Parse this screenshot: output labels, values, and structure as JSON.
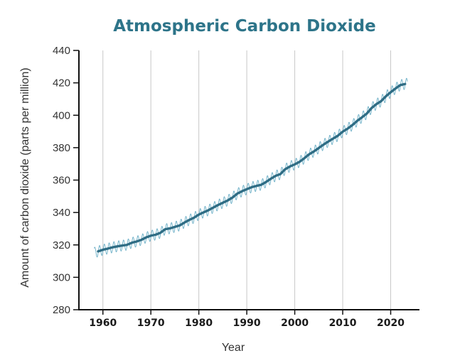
{
  "chart_data": {
    "type": "line",
    "title": "Atmospheric Carbon Dioxide",
    "xlabel": "Year",
    "ylabel": "Amount of carbon dioxide (parts per million)",
    "xlim": [
      1955,
      2026
    ],
    "ylim": [
      280,
      440
    ],
    "x_ticks": [
      1960,
      1970,
      1980,
      1990,
      2000,
      2010,
      2020
    ],
    "y_ticks": [
      280,
      300,
      320,
      340,
      360,
      380,
      400,
      420,
      440
    ],
    "x_tick_labels": [
      "1960",
      "1970",
      "1980",
      "1990",
      "2000",
      "2010",
      "2020"
    ],
    "y_tick_labels": [
      "280",
      "300",
      "320",
      "340",
      "360",
      "380",
      "400",
      "420",
      "440"
    ],
    "grid": "vertical",
    "series": [
      {
        "role": "annual-average",
        "x": [
          1959,
          1960,
          1961,
          1962,
          1963,
          1964,
          1965,
          1966,
          1967,
          1968,
          1969,
          1970,
          1971,
          1972,
          1973,
          1974,
          1975,
          1976,
          1977,
          1978,
          1979,
          1980,
          1981,
          1982,
          1983,
          1984,
          1985,
          1986,
          1987,
          1988,
          1989,
          1990,
          1991,
          1992,
          1993,
          1994,
          1995,
          1996,
          1997,
          1998,
          1999,
          2000,
          2001,
          2002,
          2003,
          2004,
          2005,
          2006,
          2007,
          2008,
          2009,
          2010,
          2011,
          2012,
          2013,
          2014,
          2015,
          2016,
          2017,
          2018,
          2019,
          2020,
          2021,
          2022,
          2023
        ],
        "values": [
          316.0,
          317.0,
          317.7,
          318.5,
          319.1,
          319.6,
          320.0,
          321.3,
          322.1,
          323.1,
          324.6,
          325.7,
          326.3,
          327.5,
          329.7,
          330.2,
          331.1,
          332.0,
          333.8,
          335.4,
          336.8,
          338.7,
          340.1,
          341.4,
          343.0,
          344.6,
          346.0,
          347.4,
          349.2,
          351.6,
          353.1,
          354.4,
          355.6,
          356.4,
          357.1,
          358.8,
          360.8,
          362.6,
          363.7,
          366.7,
          368.4,
          369.7,
          371.3,
          373.5,
          375.9,
          377.7,
          379.8,
          381.9,
          383.8,
          385.6,
          387.4,
          389.9,
          391.7,
          393.9,
          396.5,
          398.7,
          401.0,
          404.4,
          406.8,
          408.7,
          411.7,
          414.2,
          416.5,
          418.6,
          419.3
        ],
        "color": "#2f6d85"
      },
      {
        "role": "monthly-seasonal",
        "x_start": 1958.2,
        "x_end": 2023.5,
        "seasonal_amplitude_ppm": 3.3,
        "color": "#6aaec6"
      }
    ]
  },
  "colors": {
    "title": "#2d7489",
    "axis": "#111111",
    "grid": "#c8c8c8",
    "trend": "#2f6d85",
    "seasonal": "#6aaec6"
  }
}
